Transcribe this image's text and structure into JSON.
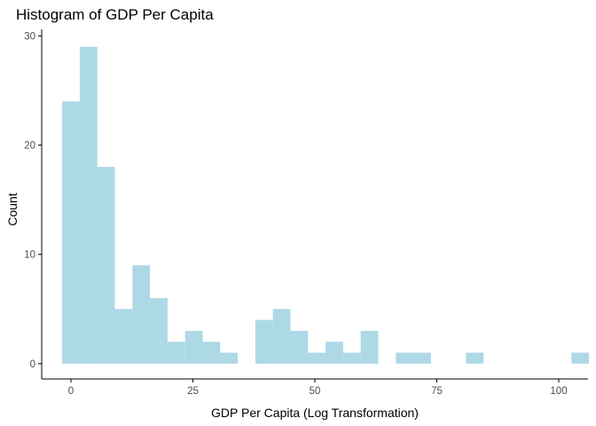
{
  "chart_data": {
    "type": "bar",
    "title": "Histogram of GDP Per Capita",
    "xlabel": "GDP Per Capita (Log Transformation)",
    "ylabel": "Count",
    "bin_width": 3.6,
    "bins": [
      {
        "x0": -1.8,
        "count": 24
      },
      {
        "x0": 1.8,
        "count": 29
      },
      {
        "x0": 5.4,
        "count": 18
      },
      {
        "x0": 9.0,
        "count": 5
      },
      {
        "x0": 12.6,
        "count": 9
      },
      {
        "x0": 16.2,
        "count": 6
      },
      {
        "x0": 19.8,
        "count": 2
      },
      {
        "x0": 23.4,
        "count": 3
      },
      {
        "x0": 27.0,
        "count": 2
      },
      {
        "x0": 30.6,
        "count": 1
      },
      {
        "x0": 34.2,
        "count": 0
      },
      {
        "x0": 37.8,
        "count": 4
      },
      {
        "x0": 41.4,
        "count": 5
      },
      {
        "x0": 45.0,
        "count": 3
      },
      {
        "x0": 48.6,
        "count": 1
      },
      {
        "x0": 52.2,
        "count": 2
      },
      {
        "x0": 55.8,
        "count": 1
      },
      {
        "x0": 59.4,
        "count": 3
      },
      {
        "x0": 63.0,
        "count": 0
      },
      {
        "x0": 66.6,
        "count": 1
      },
      {
        "x0": 70.2,
        "count": 1
      },
      {
        "x0": 73.8,
        "count": 0
      },
      {
        "x0": 77.4,
        "count": 0
      },
      {
        "x0": 81.0,
        "count": 1
      },
      {
        "x0": 84.6,
        "count": 0
      },
      {
        "x0": 88.2,
        "count": 0
      },
      {
        "x0": 91.8,
        "count": 0
      },
      {
        "x0": 95.4,
        "count": 0
      },
      {
        "x0": 99.0,
        "count": 0
      },
      {
        "x0": 102.6,
        "count": 1
      }
    ],
    "xlim": [
      -6,
      106
    ],
    "ylim": [
      -1.4,
      30.6
    ],
    "x_ticks": [
      {
        "value": 0,
        "label": "0"
      },
      {
        "value": 25,
        "label": "25"
      },
      {
        "value": 50,
        "label": "50"
      },
      {
        "value": 75,
        "label": "75"
      },
      {
        "value": 100,
        "label": "100"
      }
    ],
    "y_ticks": [
      {
        "value": 0,
        "label": "0"
      },
      {
        "value": 10,
        "label": "10"
      },
      {
        "value": 20,
        "label": "20"
      },
      {
        "value": 30,
        "label": "30"
      }
    ],
    "grid": false,
    "legend": "none",
    "colors": {
      "bar_fill": "#add8e6",
      "axis": "#000000",
      "tick_label": "#4d4d4d"
    }
  }
}
